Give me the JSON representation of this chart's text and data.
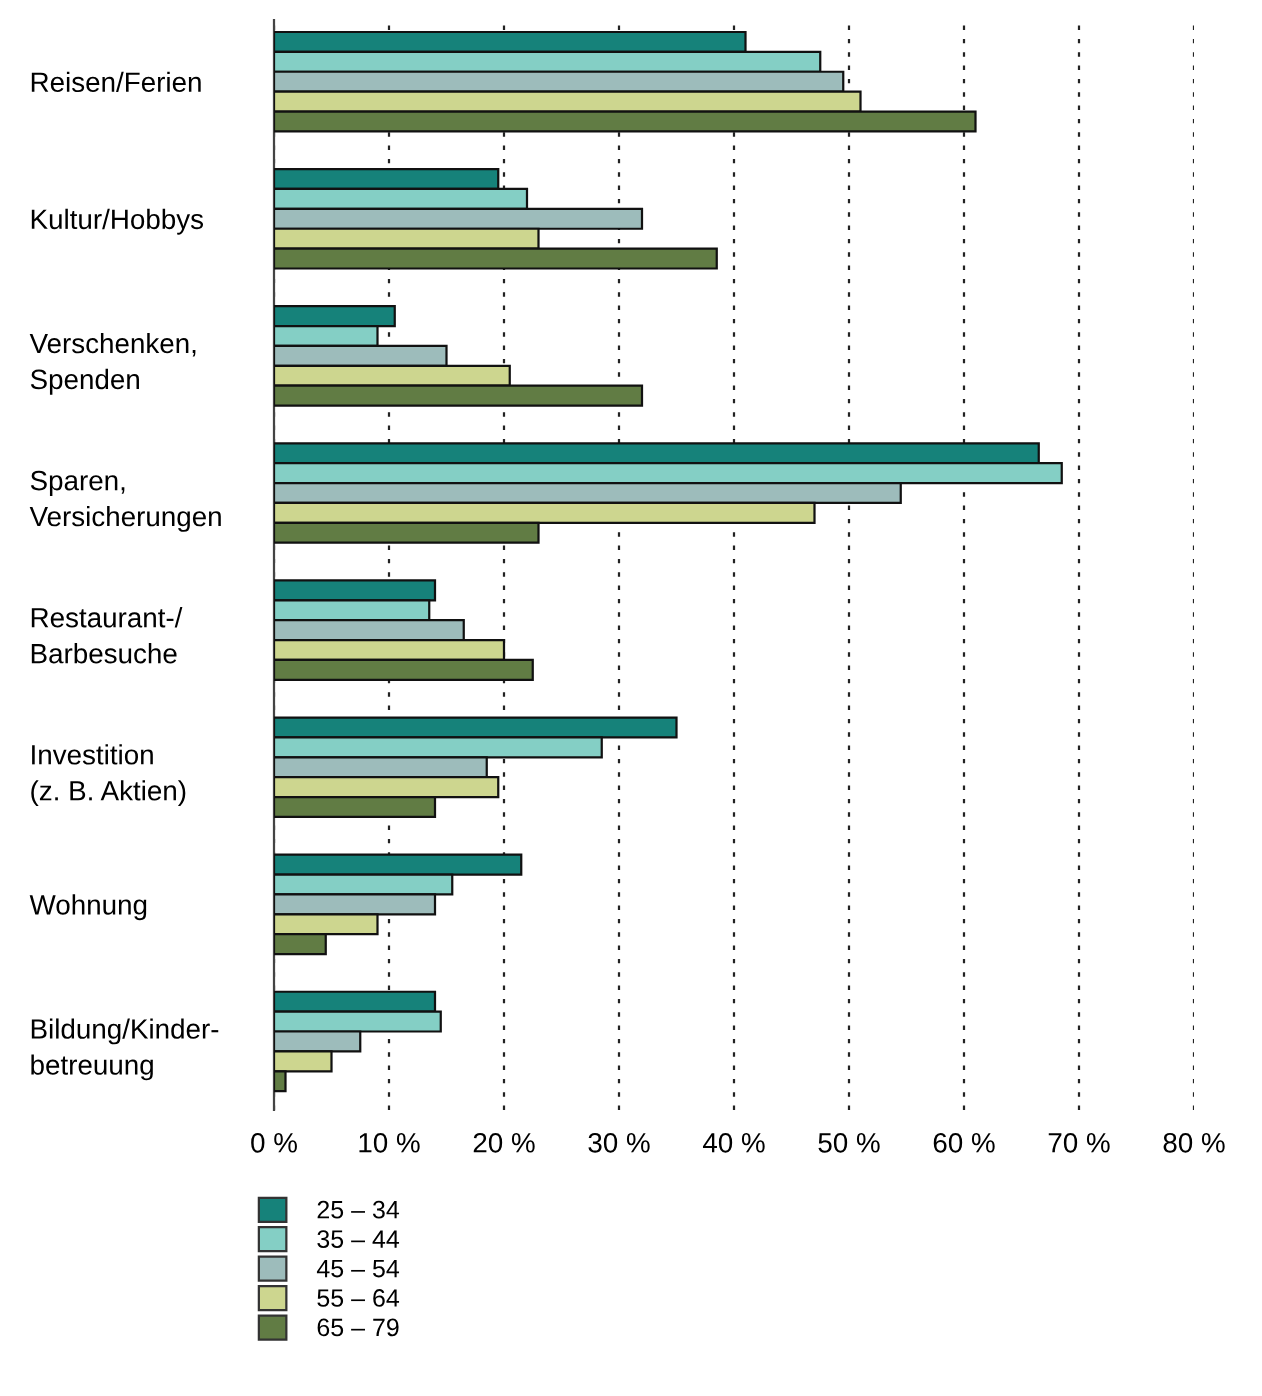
{
  "chart_data": {
    "type": "bar",
    "orientation": "horizontal",
    "categories": [
      "Reisen/Ferien",
      "Kultur/Hobbys",
      "Verschenken,\nSpenden",
      "Sparen,\nVersicherungen",
      "Restaurant-/\nBarbesuche",
      "Investition\n(z. B. Aktien)",
      "Wohnung",
      "Bildung/Kinder-\nbetreuung"
    ],
    "series": [
      {
        "name": "25 – 34",
        "color": "#16827a",
        "values": [
          41,
          19.5,
          10.5,
          66.5,
          14,
          35,
          21.5,
          14
        ]
      },
      {
        "name": "35 – 44",
        "color": "#84cfc5",
        "values": [
          47.5,
          22,
          9,
          68.5,
          13.5,
          28.5,
          15.5,
          14.5
        ]
      },
      {
        "name": "45 – 54",
        "color": "#9dbcbb",
        "values": [
          49.5,
          32,
          15,
          54.5,
          16.5,
          18.5,
          14,
          7.5
        ]
      },
      {
        "name": "55 – 64",
        "color": "#cdd68f",
        "values": [
          51,
          23,
          20.5,
          47,
          20,
          19.5,
          9,
          5
        ]
      },
      {
        "name": "65 – 79",
        "color": "#617c44",
        "values": [
          61,
          38.5,
          32,
          23,
          22.5,
          14,
          4.5,
          1
        ]
      }
    ],
    "xlim": [
      0,
      80
    ],
    "xticks": [
      {
        "value": 0,
        "label": "0 %"
      },
      {
        "value": 10,
        "label": "10 %"
      },
      {
        "value": 20,
        "label": "20 %"
      },
      {
        "value": 30,
        "label": "30 %"
      },
      {
        "value": 40,
        "label": "40 %"
      },
      {
        "value": 50,
        "label": "50 %"
      },
      {
        "value": 60,
        "label": "60 %"
      },
      {
        "value": 70,
        "label": "70 %"
      },
      {
        "value": 80,
        "label": "80 %"
      }
    ],
    "grid": "x",
    "legend": "bottom left"
  }
}
